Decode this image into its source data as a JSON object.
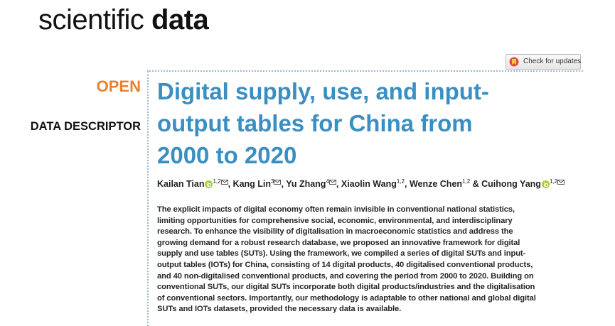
{
  "header": {
    "journal_light": "scientific",
    "journal_bold": "data",
    "check_updates": "Check for updates"
  },
  "article": {
    "access": "OPEN",
    "type": "DATA DESCRIPTOR",
    "title_lines": [
      "Digital supply, use, and input-",
      "output tables for China from",
      "2000 to 2020"
    ],
    "authors": [
      {
        "name": "Kailan Tian",
        "sup": "1,2",
        "orcid": true,
        "corresponding": true
      },
      {
        "name": ", Kang Lin",
        "sup": "3",
        "orcid": false,
        "corresponding": true
      },
      {
        "name": ", Yu Zhang",
        "sup": "4",
        "orcid": false,
        "corresponding": true
      },
      {
        "name": ", Xiaolin Wang",
        "sup": "1,2",
        "orcid": false,
        "corresponding": false
      },
      {
        "name": ", Wenze Chen",
        "sup": "1,2",
        "orcid": false,
        "corresponding": false
      },
      {
        "name": " & Cuihong Yang",
        "sup": "1,2",
        "orcid": true,
        "corresponding": true
      }
    ],
    "abstract_lines": [
      "The explicit impacts of digital economy often remain invisible in conventional national statistics,",
      "limiting opportunities for comprehensive social, economic, environmental, and interdisciplinary",
      "research. To enhance the visibility of digitalisation in macroeconomic statistics and address the",
      "growing demand for a robust research database, we proposed an innovative framework for digital",
      "supply and use tables (SUTs). Using the framework, we compiled a series of digital SUTs and input-",
      "output tables (IOTs) for China, consisting of 14 digital products, 40 digitalised conventional products,",
      "and 40 non-digitalised conventional products, and covering the period from 2000 to 2020. Building on",
      "conventional SUTs, our digital SUTs incorporate both digital products/industries and the digitalisation",
      "of conventional sectors. Importantly, our methodology is adaptable to other national and global digital",
      "SUTs and IOTs datasets, provided the necessary data is available."
    ]
  }
}
